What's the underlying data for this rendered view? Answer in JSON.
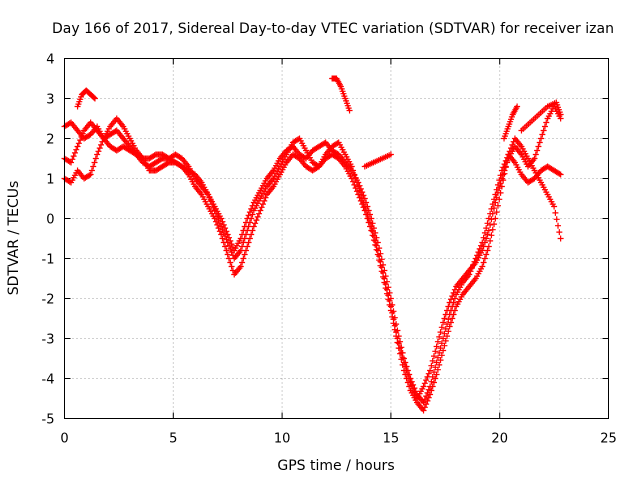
{
  "chart_data": {
    "type": "scatter",
    "title": "Day 166 of 2017, Sidereal Day-to-day VTEC variation (SDTVAR) for receiver izan",
    "xlabel": "GPS time / hours",
    "ylabel": "SDTVAR / TECUs",
    "xlim": [
      0,
      25
    ],
    "ylim": [
      -5,
      4
    ],
    "xticks": [
      0,
      5,
      10,
      15,
      20,
      25
    ],
    "yticks": [
      -5,
      -4,
      -3,
      -2,
      -1,
      0,
      1,
      2,
      3,
      4
    ],
    "grid": true,
    "marker": "+",
    "color": "#ff0000",
    "series": [
      {
        "x": [
          0.0,
          0.3,
          0.6,
          0.9,
          1.2,
          1.5,
          1.8,
          2.1,
          2.4,
          2.7,
          3.0,
          3.3,
          3.6,
          3.9,
          4.2,
          4.5,
          4.8,
          5.1,
          5.4,
          5.7,
          6.0,
          6.3,
          6.6,
          6.9,
          7.2,
          7.5,
          7.8,
          8.1,
          8.4,
          8.7,
          9.0,
          9.3,
          9.6,
          9.9,
          10.2,
          10.5,
          10.8,
          11.1,
          11.4,
          11.7,
          12.0,
          12.3,
          12.6,
          12.9,
          13.2,
          13.5,
          13.8,
          14.1,
          14.4,
          14.7,
          15.0,
          15.3,
          15.6,
          15.9,
          16.2,
          16.5,
          16.8,
          17.1,
          17.4,
          17.7,
          18.0,
          18.3,
          18.6,
          18.9,
          19.2,
          19.5,
          19.8,
          20.1,
          20.4,
          20.7,
          21.0,
          21.3,
          21.6,
          21.9,
          22.2,
          22.5,
          22.8
        ],
        "y": [
          2.3,
          2.4,
          2.2,
          2.0,
          2.1,
          2.3,
          2.0,
          1.8,
          1.7,
          1.8,
          1.7,
          1.6,
          1.5,
          1.5,
          1.6,
          1.6,
          1.5,
          1.6,
          1.5,
          1.3,
          1.0,
          0.8,
          0.6,
          0.3,
          0.0,
          -0.4,
          -0.8,
          -0.5,
          0.0,
          0.4,
          0.7,
          1.0,
          1.2,
          1.5,
          1.7,
          1.8,
          1.6,
          1.5,
          1.7,
          1.8,
          1.9,
          1.7,
          1.6,
          1.4,
          1.2,
          0.9,
          0.5,
          0.0,
          -0.6,
          -1.3,
          -2.0,
          -2.8,
          -3.5,
          -4.0,
          -4.4,
          -4.6,
          -4.2,
          -3.6,
          -3.0,
          -2.4,
          -1.9,
          -1.6,
          -1.4,
          -1.0,
          -0.6,
          0.0,
          0.6,
          1.2,
          1.6,
          1.4,
          1.1,
          0.9,
          1.0,
          1.2,
          1.3,
          1.2,
          1.1
        ]
      },
      {
        "x": [
          0.0,
          0.3,
          0.6,
          0.9,
          1.2,
          1.5,
          1.8,
          2.1,
          2.4,
          2.7,
          3.0,
          3.3,
          3.6,
          3.9,
          4.2,
          4.5,
          4.8,
          5.1,
          5.4,
          5.7,
          6.0,
          6.3,
          6.6,
          6.9,
          7.2,
          7.5,
          7.8,
          8.1,
          8.4,
          8.7,
          9.0,
          9.3,
          9.6,
          9.9,
          10.2,
          10.5,
          10.8,
          11.1,
          11.4,
          11.7,
          12.0,
          12.3,
          12.6,
          12.9,
          13.2,
          13.5,
          13.8,
          14.1,
          14.4,
          14.7,
          15.0,
          15.3,
          15.6,
          15.9,
          16.2,
          16.5,
          16.8,
          17.1,
          17.4,
          17.7,
          18.0,
          18.3,
          18.6,
          18.9,
          19.2,
          19.5,
          19.8,
          20.1,
          20.4,
          20.7,
          21.0,
          21.3,
          21.6,
          21.9,
          22.2,
          22.5,
          22.8
        ],
        "y": [
          1.5,
          1.4,
          1.8,
          2.2,
          2.4,
          2.2,
          2.0,
          2.1,
          2.2,
          2.0,
          1.8,
          1.6,
          1.4,
          1.3,
          1.4,
          1.5,
          1.5,
          1.4,
          1.3,
          1.2,
          1.1,
          0.9,
          0.6,
          0.2,
          -0.2,
          -0.6,
          -1.0,
          -0.8,
          -0.3,
          0.2,
          0.5,
          0.8,
          1.0,
          1.3,
          1.6,
          1.9,
          2.0,
          1.7,
          1.4,
          1.3,
          1.5,
          1.6,
          1.5,
          1.3,
          1.0,
          0.6,
          0.2,
          -0.3,
          -0.9,
          -1.6,
          -2.3,
          -3.1,
          -3.8,
          -4.3,
          -4.6,
          -4.8,
          -4.4,
          -3.9,
          -3.3,
          -2.7,
          -2.2,
          -1.9,
          -1.7,
          -1.5,
          -1.2,
          -0.7,
          0.0,
          0.8,
          1.6,
          2.0,
          1.8,
          1.5,
          1.2,
          0.9,
          0.6,
          0.3,
          -0.5
        ]
      },
      {
        "x": [
          0.0,
          0.3,
          0.6,
          0.9,
          1.2,
          1.5,
          1.8,
          2.1,
          2.4,
          2.7,
          3.0,
          3.3,
          3.6,
          3.9,
          4.2,
          4.5,
          4.8,
          5.1,
          5.4,
          5.7,
          6.0,
          6.3,
          6.6,
          6.9,
          7.2,
          7.5,
          7.8,
          8.1,
          8.4,
          8.7,
          9.0,
          9.3,
          9.6,
          9.9,
          10.2,
          10.5,
          10.8,
          11.1,
          11.4,
          11.7,
          12.0,
          12.3,
          12.6,
          12.9,
          13.2,
          13.5,
          13.8,
          14.1,
          14.4,
          14.7,
          15.0,
          15.3,
          15.6,
          15.9,
          16.2,
          16.5,
          16.8,
          17.1,
          17.4,
          17.7,
          18.0,
          18.3,
          18.6,
          18.9,
          19.2,
          19.5,
          19.8,
          20.1,
          20.4,
          20.7,
          21.0,
          21.3,
          21.6,
          21.9,
          22.2,
          22.5,
          22.8
        ],
        "y": [
          1.0,
          0.9,
          1.2,
          1.0,
          1.1,
          1.6,
          2.0,
          2.3,
          2.5,
          2.3,
          2.0,
          1.7,
          1.5,
          1.2,
          1.2,
          1.3,
          1.4,
          1.4,
          1.3,
          1.1,
          0.8,
          0.6,
          0.3,
          0.0,
          -0.4,
          -0.9,
          -1.4,
          -1.2,
          -0.7,
          -0.2,
          0.2,
          0.6,
          0.8,
          1.1,
          1.4,
          1.6,
          1.5,
          1.3,
          1.2,
          1.3,
          1.6,
          1.8,
          1.9,
          1.6,
          1.3,
          0.8,
          0.3,
          -0.2,
          -0.8,
          -1.5,
          -2.2,
          -3.0,
          -3.6,
          -4.1,
          -4.5,
          -4.2,
          -3.8,
          -3.2,
          -2.6,
          -2.1,
          -1.7,
          -1.5,
          -1.3,
          -1.1,
          -0.8,
          -0.3,
          0.4,
          1.0,
          1.5,
          1.8,
          1.6,
          1.3,
          1.5,
          2.0,
          2.5,
          2.8,
          2.5
        ]
      }
    ],
    "extra_series": [
      {
        "x": [
          0.6,
          0.8,
          1.0,
          1.2,
          1.4
        ],
        "y": [
          2.8,
          3.1,
          3.2,
          3.1,
          3.0
        ]
      },
      {
        "x": [
          12.3,
          12.5,
          12.7,
          12.9,
          13.1
        ],
        "y": [
          3.5,
          3.5,
          3.3,
          3.0,
          2.7
        ]
      },
      {
        "x": [
          13.8,
          14.2,
          14.6,
          15.0
        ],
        "y": [
          1.3,
          1.4,
          1.5,
          1.6
        ]
      },
      {
        "x": [
          21.0,
          21.4,
          21.8,
          22.2,
          22.6,
          22.8
        ],
        "y": [
          2.2,
          2.4,
          2.6,
          2.8,
          2.9,
          2.6
        ]
      },
      {
        "x": [
          20.2,
          20.4,
          20.6,
          20.8
        ],
        "y": [
          2.0,
          2.3,
          2.6,
          2.8
        ]
      }
    ]
  }
}
